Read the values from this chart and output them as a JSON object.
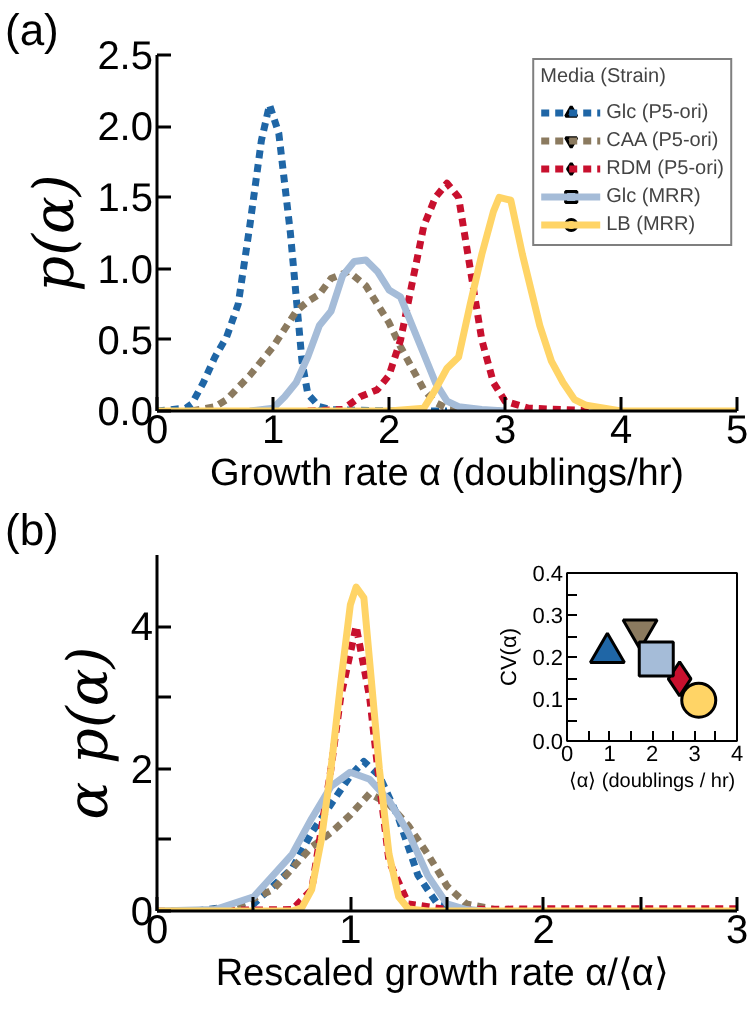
{
  "chart_data": [
    {
      "type": "line",
      "annotations": [
        "(a)"
      ],
      "xlabel": "Growth rate α (doublings/hr)",
      "ylabel": "p(α)",
      "legend_title": "Media (Strain)",
      "legend": "top right",
      "xlim": [
        0,
        5
      ],
      "ylim": [
        0,
        2.5
      ],
      "xticks": [
        0,
        1,
        2,
        3,
        4,
        5
      ],
      "yticks": [
        {
          "value": 0,
          "label": "0.0"
        },
        {
          "value": 0.5,
          "label": "0.5"
        },
        {
          "value": 1,
          "label": "1.0"
        },
        {
          "value": 1.5,
          "label": "1.5"
        },
        {
          "value": 2,
          "label": "2.0"
        },
        {
          "value": 2.5,
          "label": "2.5"
        }
      ],
      "series": [
        {
          "name": "Glc (P5-ori)",
          "color": "#1f66a6",
          "line_style": "dashed",
          "x": [
            0,
            0.25,
            0.3,
            0.4,
            0.5,
            0.6,
            0.7,
            0.8,
            0.85,
            0.9,
            0.97,
            1.05,
            1.1,
            1.15,
            1.2,
            1.25,
            1.3,
            1.4,
            1.5,
            2.0,
            2.5
          ],
          "values": [
            0,
            0.02,
            0.05,
            0.2,
            0.38,
            0.52,
            0.75,
            1.3,
            1.6,
            1.9,
            2.15,
            1.95,
            1.6,
            1.25,
            0.8,
            0.35,
            0.12,
            0.03,
            0.01,
            0,
            0
          ]
        },
        {
          "name": "CAA (P5-ori)",
          "color": "#8b7a5f",
          "line_style": "dashed",
          "x": [
            0.3,
            0.5,
            0.6,
            0.8,
            1.0,
            1.2,
            1.3,
            1.4,
            1.5,
            1.65,
            1.8,
            1.9,
            2.0,
            2.1,
            2.2,
            2.3,
            2.4,
            2.5,
            2.7,
            3.0
          ],
          "values": [
            0,
            0.03,
            0.08,
            0.25,
            0.45,
            0.7,
            0.77,
            0.82,
            0.93,
            0.98,
            0.88,
            0.75,
            0.62,
            0.45,
            0.3,
            0.15,
            0.06,
            0.02,
            0,
            0
          ]
        },
        {
          "name": "RDM (P5-ori)",
          "color": "#c8102e",
          "line_style": "dashed",
          "x": [
            1.3,
            1.6,
            1.75,
            1.9,
            2.0,
            2.1,
            2.2,
            2.3,
            2.4,
            2.5,
            2.6,
            2.7,
            2.8,
            2.9,
            3.0,
            3.2,
            3.5,
            3.8
          ],
          "values": [
            0,
            0.01,
            0.1,
            0.15,
            0.25,
            0.5,
            0.9,
            1.3,
            1.5,
            1.6,
            1.5,
            1.0,
            0.5,
            0.2,
            0.07,
            0.02,
            0.01,
            0
          ]
        },
        {
          "name": "Glc (MRR)",
          "color": "#a5bcd8",
          "line_style": "solid",
          "x": [
            0.8,
            1.0,
            1.1,
            1.2,
            1.3,
            1.4,
            1.5,
            1.6,
            1.7,
            1.8,
            1.9,
            2.0,
            2.1,
            2.2,
            2.3,
            2.4,
            2.5,
            2.6,
            2.8,
            3.0
          ],
          "values": [
            0,
            0.02,
            0.1,
            0.2,
            0.38,
            0.6,
            0.7,
            0.95,
            1.05,
            1.06,
            0.98,
            0.85,
            0.8,
            0.6,
            0.4,
            0.2,
            0.07,
            0.03,
            0.01,
            0
          ]
        },
        {
          "name": "LB (MRR)",
          "color": "#ffd466",
          "line_style": "solid",
          "x": [
            0,
            2.0,
            2.3,
            2.4,
            2.5,
            2.6,
            2.7,
            2.8,
            2.9,
            2.95,
            3.05,
            3.15,
            3.3,
            3.4,
            3.5,
            3.6,
            3.7,
            4.0,
            5.0
          ],
          "values": [
            0,
            0,
            0.02,
            0.15,
            0.3,
            0.38,
            0.75,
            1.1,
            1.4,
            1.5,
            1.48,
            1.1,
            0.6,
            0.35,
            0.2,
            0.08,
            0.04,
            0,
            0
          ]
        }
      ]
    },
    {
      "type": "line",
      "annotations": [
        "(b)"
      ],
      "xlabel": "Rescaled growth rate  α/⟨α⟩",
      "ylabel": "α p(α)",
      "xlim": [
        0,
        3
      ],
      "ylim": [
        0,
        5
      ],
      "xticks": [
        0,
        {
          "value": 0.5,
          "label": null
        },
        1,
        {
          "value": 1.5,
          "label": null
        },
        2,
        {
          "value": 2.5,
          "label": null
        },
        3
      ],
      "yticks": [
        0,
        {
          "value": 1,
          "label": null
        },
        2,
        {
          "value": 3,
          "label": null
        },
        4
      ],
      "series": [
        {
          "color": "#1f66a6",
          "line_style": "dashed",
          "x": [
            0.2,
            0.5,
            0.7,
            0.8,
            0.9,
            1.0,
            1.07,
            1.15,
            1.25,
            1.35,
            1.45,
            1.55,
            1.7
          ],
          "values": [
            0,
            0.1,
            0.6,
            1.1,
            1.5,
            1.9,
            2.1,
            1.9,
            1.3,
            0.5,
            0.1,
            0.02,
            0
          ]
        },
        {
          "color": "#8b7a5f",
          "line_style": "dashed",
          "x": [
            0.2,
            0.4,
            0.6,
            0.8,
            0.9,
            1.0,
            1.1,
            1.2,
            1.3,
            1.4,
            1.5,
            1.6,
            1.75,
            2.0
          ],
          "values": [
            0,
            0.05,
            0.3,
            0.9,
            1.1,
            1.35,
            1.65,
            1.5,
            1.2,
            0.8,
            0.35,
            0.1,
            0.02,
            0
          ]
        },
        {
          "color": "#c8102e",
          "line_style": "dashed",
          "x": [
            0,
            0.7,
            0.8,
            0.9,
            0.95,
            1.03,
            1.1,
            1.15,
            1.2,
            1.3,
            1.5,
            2.0,
            3.0
          ],
          "values": [
            0,
            0.02,
            0.3,
            2.0,
            3.0,
            4.0,
            3.0,
            1.8,
            0.7,
            0.1,
            0.02,
            0.03,
            0.03
          ]
        },
        {
          "color": "#a5bcd8",
          "line_style": "solid",
          "x": [
            0,
            0.3,
            0.5,
            0.7,
            0.8,
            0.9,
            1.0,
            1.1,
            1.2,
            1.3,
            1.4,
            1.5,
            1.6,
            1.7
          ],
          "values": [
            0,
            0.02,
            0.2,
            0.8,
            1.3,
            1.75,
            1.95,
            1.85,
            1.55,
            1.1,
            0.5,
            0.1,
            0.02,
            0
          ]
        },
        {
          "color": "#ffd466",
          "line_style": "solid",
          "x": [
            0,
            0.7,
            0.75,
            0.8,
            0.85,
            0.9,
            0.95,
            1.0,
            1.03,
            1.07,
            1.1,
            1.15,
            1.2,
            1.25,
            1.3,
            1.4,
            3.0
          ],
          "values": [
            0,
            0,
            0.05,
            0.3,
            1.0,
            2.0,
            3.2,
            4.3,
            4.55,
            4.4,
            3.5,
            2.0,
            0.8,
            0.2,
            0.03,
            0,
            0
          ]
        }
      ]
    },
    {
      "type": "scatter",
      "xlabel": "⟨α⟩ (doublings / hr)",
      "ylabel": "CV(α)",
      "xlim": [
        0,
        4
      ],
      "ylim": [
        0,
        0.4
      ],
      "xticks": [
        0,
        {
          "value": 0.5,
          "label": null
        },
        1,
        {
          "value": 1.5,
          "label": null
        },
        2,
        {
          "value": 2.5,
          "label": null
        },
        3,
        {
          "value": 3.5,
          "label": null
        },
        4
      ],
      "yticks": [
        {
          "value": 0,
          "label": "0.0"
        },
        {
          "value": 0.05,
          "label": null
        },
        {
          "value": 0.1,
          "label": "0.1"
        },
        {
          "value": 0.15,
          "label": null
        },
        {
          "value": 0.2,
          "label": "0.2"
        },
        {
          "value": 0.25,
          "label": null
        },
        {
          "value": 0.3,
          "label": "0.3"
        },
        {
          "value": 0.35,
          "label": null
        },
        {
          "value": 0.4,
          "label": "0.4"
        }
      ],
      "series": [
        {
          "color": "#1f66a6",
          "marker": "triangle",
          "x": [
            0.95
          ],
          "values": [
            0.21
          ]
        },
        {
          "color": "#8b7a5f",
          "marker": "triangle_down",
          "x": [
            1.72
          ],
          "values": [
            0.265
          ]
        },
        {
          "color": "#c8102e",
          "marker": "diamond",
          "x": [
            2.65
          ],
          "values": [
            0.148
          ]
        },
        {
          "color": "#a5bcd8",
          "marker": "square",
          "x": [
            2.1
          ],
          "values": [
            0.195
          ]
        },
        {
          "color": "#ffd466",
          "marker": "circle",
          "x": [
            3.1
          ],
          "values": [
            0.097
          ]
        }
      ]
    }
  ]
}
